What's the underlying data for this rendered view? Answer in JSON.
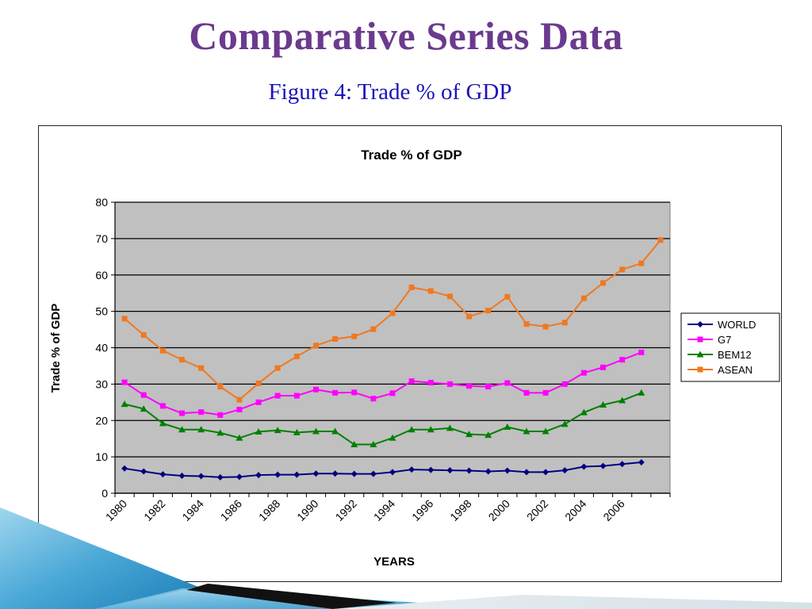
{
  "slide": {
    "title": "Comparative Series Data",
    "subtitle": "Figure 4: Trade % of GDP"
  },
  "colors": {
    "title": "#6b3a8e",
    "subtitle": "#1a14b8",
    "plot_bg": "#c0c0c0",
    "WORLD": "#000080",
    "G7": "#ff00ff",
    "BEM12": "#008000",
    "ASEAN": "#f07820"
  },
  "chart_data": {
    "type": "line",
    "title": "Trade % of GDP",
    "xlabel": "YEARS",
    "ylabel": "Trade  % of GDP",
    "ylim": [
      0,
      80
    ],
    "yticks": [
      "0",
      "10",
      "20",
      "30",
      "40",
      "50",
      "60",
      "70",
      "80"
    ],
    "x": [
      1980,
      1981,
      1982,
      1983,
      1984,
      1985,
      1986,
      1987,
      1988,
      1989,
      1990,
      1991,
      1992,
      1993,
      1994,
      1995,
      1996,
      1997,
      1998,
      1999,
      2000,
      2001,
      2002,
      2003,
      2004,
      2005,
      2006,
      2007,
      2008
    ],
    "xtick_labels": [
      "1980",
      "1982",
      "1984",
      "1986",
      "1988",
      "1990",
      "1992",
      "1994",
      "1996",
      "1998",
      "2000",
      "2002",
      "2004",
      "2006"
    ],
    "grid": true,
    "legend_position": "right",
    "series": [
      {
        "name": "WORLD",
        "marker": "diamond",
        "values": [
          6.8,
          6.0,
          5.2,
          4.8,
          4.7,
          4.4,
          4.5,
          5.0,
          5.1,
          5.1,
          5.4,
          5.4,
          5.3,
          5.3,
          5.8,
          6.5,
          6.4,
          6.3,
          6.2,
          6.0,
          6.2,
          5.8,
          5.8,
          6.3,
          7.3,
          7.5,
          8.0,
          8.5,
          null
        ]
      },
      {
        "name": "G7",
        "marker": "square",
        "values": [
          30.5,
          27.0,
          24.0,
          22.0,
          22.3,
          21.5,
          23.0,
          25.0,
          26.8,
          26.8,
          28.5,
          27.6,
          27.7,
          26.0,
          27.5,
          30.8,
          30.4,
          30.0,
          29.5,
          29.3,
          30.3,
          27.6,
          27.6,
          30.0,
          33.1,
          34.6,
          36.7,
          38.7,
          null
        ]
      },
      {
        "name": "BEM12",
        "marker": "triangle",
        "values": [
          24.5,
          23.2,
          19.2,
          17.5,
          17.5,
          16.6,
          15.2,
          16.9,
          17.3,
          16.7,
          17.0,
          17.0,
          13.4,
          13.4,
          15.2,
          17.5,
          17.5,
          17.9,
          16.2,
          16.0,
          18.2,
          17.0,
          17.0,
          19.0,
          22.2,
          24.3,
          25.5,
          27.6,
          null
        ]
      },
      {
        "name": "ASEAN",
        "marker": "square",
        "values": [
          48.0,
          43.5,
          39.2,
          36.7,
          34.4,
          29.3,
          25.7,
          30.2,
          34.4,
          37.6,
          40.6,
          42.4,
          43.1,
          45.1,
          49.5,
          56.6,
          55.6,
          54.1,
          48.6,
          50.2,
          54.0,
          46.5,
          45.8,
          46.9,
          53.6,
          57.8,
          61.5,
          63.2,
          69.6
        ]
      }
    ]
  }
}
